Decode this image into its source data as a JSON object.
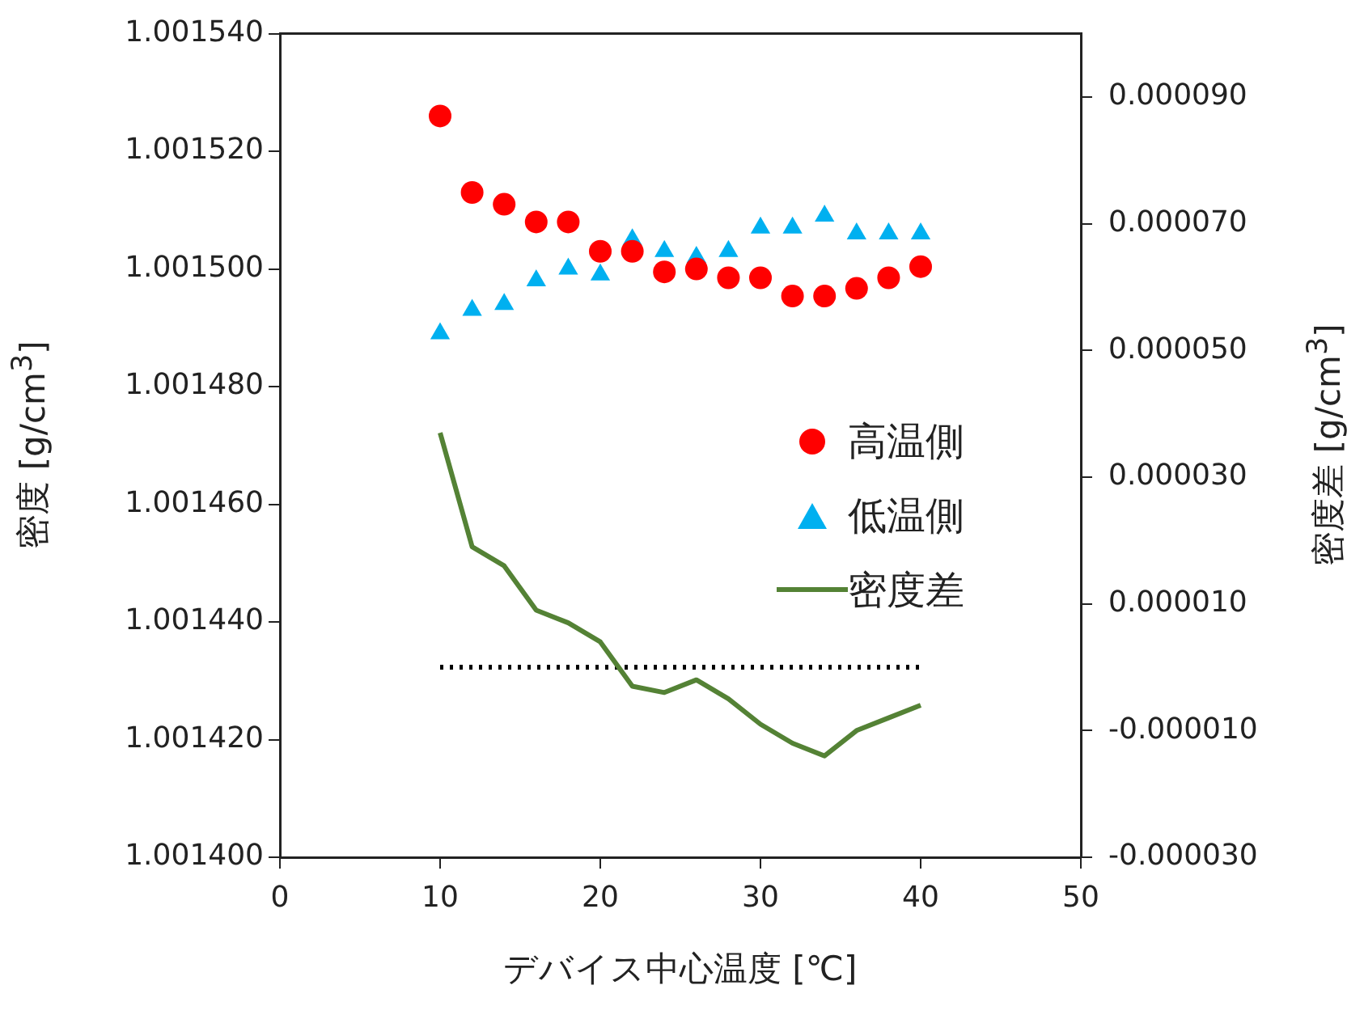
{
  "chart_data": {
    "type": "scatter",
    "xlabel": "デバイス中心温度 [℃]",
    "ylabel": "密度 [g/cm$^{3}$]",
    "y2label": "密度差 [g/cm$^{3}$]",
    "legend": "right",
    "x": [
      10,
      12,
      14,
      16,
      18,
      20,
      22,
      24,
      26,
      28,
      30,
      32,
      34,
      36,
      38,
      40
    ],
    "xlim": [
      0,
      50
    ],
    "xticks": [
      0,
      10,
      20,
      30,
      40,
      50
    ],
    "ylim": [
      1.0014,
      1.00154
    ],
    "yticks": [
      {
        "value": 1.0014,
        "label": "1.001400"
      },
      {
        "value": 1.00142,
        "label": "1.001420"
      },
      {
        "value": 1.00144,
        "label": "1.001440"
      },
      {
        "value": 1.00146,
        "label": "1.001460"
      },
      {
        "value": 1.00148,
        "label": "1.001480"
      },
      {
        "value": 1.0015,
        "label": "1.001500"
      },
      {
        "value": 1.00152,
        "label": "1.001520"
      },
      {
        "value": 1.00154,
        "label": "1.001540"
      }
    ],
    "y2lim": [
      -3e-05,
      0.0001
    ],
    "y2ticks": [
      {
        "value": -3e-05,
        "label": "-0.000030"
      },
      {
        "value": -1e-05,
        "label": "-0.000010"
      },
      {
        "value": 1e-05,
        "label": "0.000010"
      },
      {
        "value": 3e-05,
        "label": "0.000030"
      },
      {
        "value": 5e-05,
        "label": "0.000050"
      },
      {
        "value": 7e-05,
        "label": "0.000070"
      },
      {
        "value": 9e-05,
        "label": "0.000090"
      }
    ],
    "series": [
      {
        "name": "高温側",
        "marker": "circle",
        "color": "#ff0000",
        "values": [
          1.001526,
          1.001513,
          1.001511,
          1.001508,
          1.001508,
          1.001503,
          1.001503,
          1.0014995,
          1.0015,
          1.0014985,
          1.0014985,
          1.0014954,
          1.0014954,
          1.0014967,
          1.0014985,
          1.0015004
        ]
      },
      {
        "name": "低温側",
        "marker": "triangle",
        "color": "#00b0f0",
        "values": [
          1.001489,
          1.001493,
          1.001494,
          1.001498,
          1.0015,
          1.001499,
          1.001505,
          1.001503,
          1.001502,
          1.001503,
          1.001507,
          1.001507,
          1.001509,
          1.001506,
          1.001506,
          1.001506
        ]
      },
      {
        "name": "密度差",
        "type": "line",
        "marker": "none",
        "line_style": "solid",
        "axis": "y2",
        "color": "#548235",
        "values": [
          3.7e-05,
          1.9e-05,
          1.6e-05,
          9e-06,
          7e-06,
          4e-06,
          -3e-06,
          -4e-06,
          -2e-06,
          -5e-06,
          -9e-06,
          -1.2e-05,
          -1.4e-05,
          -1e-05,
          -8e-06,
          -6e-06
        ]
      },
      {
        "type": "line",
        "marker": "none",
        "line_style": "dotted",
        "axis": "y2",
        "color": "#000000",
        "x": [
          10,
          40
        ],
        "values": [
          0,
          0
        ]
      }
    ]
  }
}
